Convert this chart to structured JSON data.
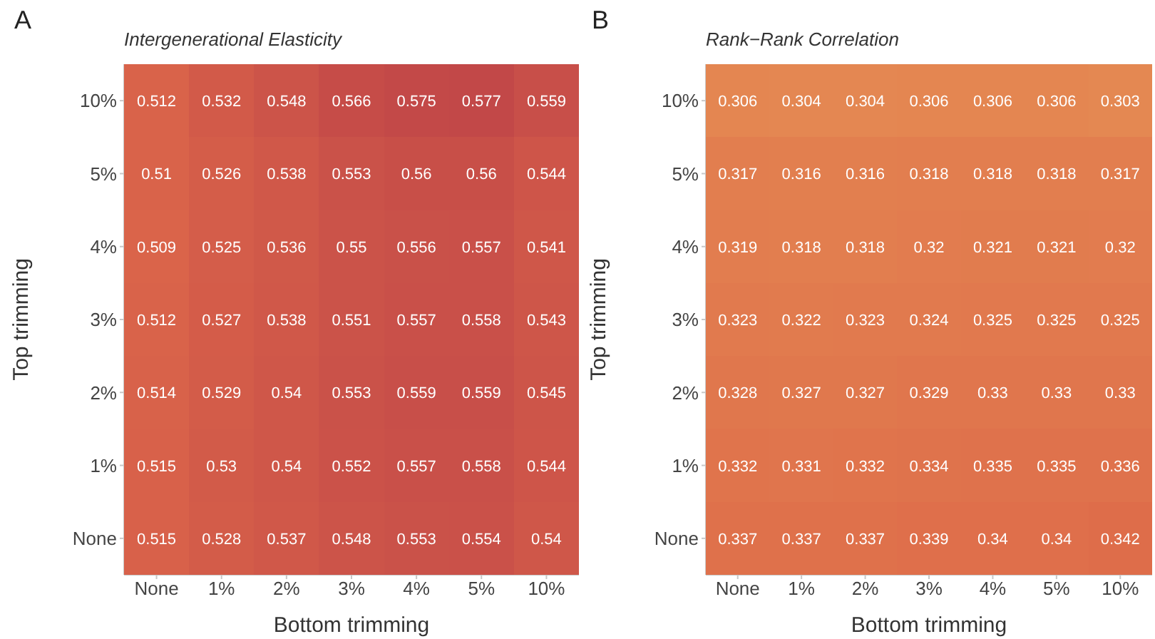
{
  "chart_data": [
    {
      "type": "heatmap",
      "title": "Intergenerational Elasticity",
      "annotations": [
        "A"
      ],
      "xlabel": "Bottom trimming",
      "ylabel": "Top trimming",
      "data_labels": true,
      "categories": [
        "None",
        "1%",
        "2%",
        "3%",
        "4%",
        "5%",
        "10%"
      ],
      "y_categories": [
        "10%",
        "5%",
        "4%",
        "3%",
        "2%",
        "1%",
        "None"
      ],
      "cells": [
        [
          0.512,
          0.532,
          0.548,
          0.566,
          0.575,
          0.577,
          0.559
        ],
        [
          0.51,
          0.526,
          0.538,
          0.553,
          0.56,
          0.56,
          0.544
        ],
        [
          0.509,
          0.525,
          0.536,
          0.55,
          0.556,
          0.557,
          0.541
        ],
        [
          0.512,
          0.527,
          0.538,
          0.551,
          0.557,
          0.558,
          0.543
        ],
        [
          0.514,
          0.529,
          0.54,
          0.553,
          0.559,
          0.559,
          0.545
        ],
        [
          0.515,
          0.53,
          0.54,
          0.552,
          0.557,
          0.558,
          0.544
        ],
        [
          0.515,
          0.528,
          0.537,
          0.548,
          0.553,
          0.554,
          0.54
        ]
      ]
    },
    {
      "type": "heatmap",
      "title": "Rank−Rank Correlation",
      "annotations": [
        "B"
      ],
      "xlabel": "Bottom trimming",
      "ylabel": "Top trimming",
      "data_labels": true,
      "categories": [
        "None",
        "1%",
        "2%",
        "3%",
        "4%",
        "5%",
        "10%"
      ],
      "y_categories": [
        "10%",
        "5%",
        "4%",
        "3%",
        "2%",
        "1%",
        "None"
      ],
      "cells": [
        [
          0.306,
          0.304,
          0.304,
          0.306,
          0.306,
          0.306,
          0.303
        ],
        [
          0.317,
          0.316,
          0.316,
          0.318,
          0.318,
          0.318,
          0.317
        ],
        [
          0.319,
          0.318,
          0.318,
          0.32,
          0.321,
          0.321,
          0.32
        ],
        [
          0.323,
          0.322,
          0.323,
          0.324,
          0.325,
          0.325,
          0.325
        ],
        [
          0.328,
          0.327,
          0.327,
          0.329,
          0.33,
          0.33,
          0.33
        ],
        [
          0.332,
          0.331,
          0.332,
          0.334,
          0.335,
          0.335,
          0.336
        ],
        [
          0.337,
          0.337,
          0.337,
          0.339,
          0.34,
          0.34,
          0.342
        ]
      ]
    }
  ]
}
